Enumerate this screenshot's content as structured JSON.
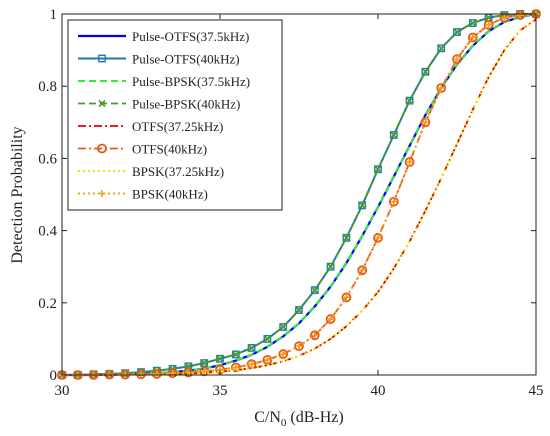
{
  "chart_data": {
    "type": "line",
    "xlabel_main": "C/N",
    "xlabel_sub": "0",
    "xlabel_unit": " (dB-Hz)",
    "ylabel": "Detection Probability",
    "xlim": [
      30,
      45
    ],
    "ylim": [
      0,
      1
    ],
    "xticks": [
      "30",
      "35",
      "40",
      "45"
    ],
    "yticks": [
      "0",
      "0.2",
      "0.4",
      "0.6",
      "0.8",
      "1"
    ],
    "grid": false,
    "legend_position": "top-left",
    "x": [
      30,
      30.5,
      31,
      31.5,
      32,
      32.5,
      33,
      33.5,
      34,
      34.5,
      35,
      35.5,
      36,
      36.5,
      37,
      37.5,
      38,
      38.5,
      39,
      39.5,
      40,
      40.5,
      41,
      41.5,
      42,
      42.5,
      43,
      43.5,
      44,
      44.5,
      45
    ],
    "series": [
      {
        "name": "Pulse-OTFS(37.5kHz)",
        "color": "#0000ff",
        "style": "solid",
        "width": 2.2,
        "marker": "none",
        "values": [
          0,
          0,
          0,
          0.001,
          0.002,
          0.003,
          0.005,
          0.008,
          0.012,
          0.018,
          0.027,
          0.04,
          0.056,
          0.078,
          0.107,
          0.143,
          0.19,
          0.245,
          0.31,
          0.385,
          0.465,
          0.55,
          0.635,
          0.72,
          0.795,
          0.86,
          0.912,
          0.952,
          0.978,
          0.992,
          1.0
        ]
      },
      {
        "name": "Pulse-OTFS(40kHz)",
        "color": "#1f77b4",
        "style": "solid",
        "width": 2.0,
        "marker": "square",
        "values": [
          0,
          0,
          0.002,
          0.003,
          0.005,
          0.008,
          0.012,
          0.017,
          0.024,
          0.033,
          0.045,
          0.057,
          0.075,
          0.1,
          0.133,
          0.18,
          0.235,
          0.3,
          0.38,
          0.47,
          0.57,
          0.665,
          0.76,
          0.84,
          0.905,
          0.95,
          0.975,
          0.99,
          0.997,
          1.0,
          1.0
        ]
      },
      {
        "name": "Pulse-BPSK(37.5kHz)",
        "color": "#33ee33",
        "style": "dashed",
        "width": 2.0,
        "marker": "none",
        "values": [
          0,
          0,
          0,
          0.001,
          0.002,
          0.003,
          0.005,
          0.008,
          0.012,
          0.018,
          0.027,
          0.04,
          0.056,
          0.078,
          0.107,
          0.143,
          0.19,
          0.245,
          0.31,
          0.385,
          0.465,
          0.55,
          0.635,
          0.72,
          0.795,
          0.86,
          0.912,
          0.952,
          0.978,
          0.992,
          1.0
        ]
      },
      {
        "name": "Pulse-BPSK(40kHz)",
        "color": "#4a9a2a",
        "style": "dashed",
        "width": 1.8,
        "marker": "x",
        "values": [
          0,
          0,
          0.002,
          0.003,
          0.005,
          0.008,
          0.012,
          0.017,
          0.024,
          0.033,
          0.045,
          0.057,
          0.075,
          0.1,
          0.133,
          0.18,
          0.235,
          0.3,
          0.38,
          0.47,
          0.57,
          0.665,
          0.76,
          0.84,
          0.905,
          0.95,
          0.975,
          0.99,
          0.997,
          1.0,
          1.0
        ]
      },
      {
        "name": "OTFS(37.25kHz)",
        "color": "#dd0000",
        "style": "dashdot",
        "width": 1.8,
        "marker": "none",
        "values": [
          0,
          0,
          0,
          0,
          0.001,
          0.001,
          0.002,
          0.003,
          0.004,
          0.006,
          0.009,
          0.013,
          0.019,
          0.027,
          0.038,
          0.053,
          0.073,
          0.1,
          0.135,
          0.178,
          0.23,
          0.295,
          0.37,
          0.455,
          0.545,
          0.64,
          0.735,
          0.825,
          0.9,
          0.955,
          0.985
        ]
      },
      {
        "name": "OTFS(40kHz)",
        "color": "#e8561c",
        "style": "dashdot",
        "width": 1.8,
        "marker": "circle",
        "values": [
          0,
          0,
          0,
          0.001,
          0.001,
          0.002,
          0.003,
          0.005,
          0.007,
          0.01,
          0.015,
          0.021,
          0.03,
          0.042,
          0.058,
          0.08,
          0.11,
          0.155,
          0.215,
          0.29,
          0.38,
          0.48,
          0.59,
          0.7,
          0.795,
          0.875,
          0.935,
          0.97,
          0.99,
          0.997,
          1.0
        ]
      },
      {
        "name": "BPSK(37.25kHz)",
        "color": "#f5e000",
        "style": "dotted",
        "width": 2.0,
        "marker": "none",
        "values": [
          0,
          0,
          0,
          0,
          0.001,
          0.001,
          0.002,
          0.003,
          0.004,
          0.006,
          0.009,
          0.013,
          0.019,
          0.027,
          0.038,
          0.053,
          0.073,
          0.1,
          0.135,
          0.178,
          0.23,
          0.295,
          0.37,
          0.455,
          0.545,
          0.64,
          0.735,
          0.825,
          0.9,
          0.955,
          0.985
        ]
      },
      {
        "name": "BPSK(40kHz)",
        "color": "#f0a020",
        "style": "dotted",
        "width": 2.0,
        "marker": "plus",
        "values": [
          0,
          0,
          0,
          0.001,
          0.001,
          0.002,
          0.003,
          0.005,
          0.007,
          0.01,
          0.015,
          0.021,
          0.03,
          0.042,
          0.058,
          0.08,
          0.11,
          0.155,
          0.215,
          0.29,
          0.38,
          0.48,
          0.59,
          0.7,
          0.795,
          0.875,
          0.935,
          0.97,
          0.99,
          0.997,
          1.0
        ]
      }
    ]
  }
}
